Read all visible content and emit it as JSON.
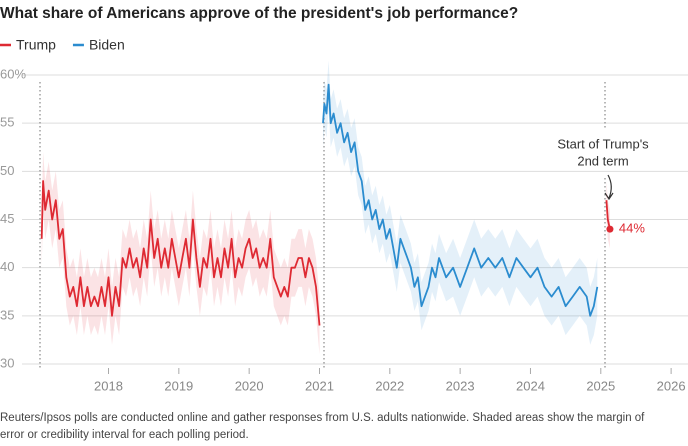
{
  "chart_data": {
    "type": "line",
    "title": "What share of Americans approve of the president's job performance?",
    "annotation": [
      "Start of Trump's",
      "2nd term"
    ],
    "note": [
      "Reuters/Ipsos polls are conducted online and gather responses from U.S. adults nationwide. Shaded areas show the margin of",
      "error or credibility interval for each polling period."
    ],
    "xlim": [
      2016.77,
      2026.24
    ],
    "xticks": [
      2018,
      2019,
      2020,
      2021,
      2022,
      2023,
      2024,
      2025,
      2026
    ],
    "ylim": [
      30,
      60
    ],
    "yticks": [
      30,
      35,
      40,
      45,
      50,
      55,
      {
        "value": 60,
        "label": "60%"
      }
    ],
    "grid": true,
    "legend": "top-left",
    "series": [
      {
        "name": "Trump",
        "color": "#de2a33",
        "x": [
          2017.05,
          2017.07,
          2017.1,
          2017.15,
          2017.2,
          2017.25,
          2017.3,
          2017.35,
          2017.4,
          2017.45,
          2017.5,
          2017.55,
          2017.6,
          2017.65,
          2017.7,
          2017.75,
          2017.8,
          2017.85,
          2017.9,
          2017.95,
          2018.0,
          2018.05,
          2018.1,
          2018.15,
          2018.2,
          2018.25,
          2018.3,
          2018.35,
          2018.4,
          2018.45,
          2018.5,
          2018.55,
          2018.6,
          2018.65,
          2018.7,
          2018.75,
          2018.8,
          2018.85,
          2018.9,
          2018.95,
          2019.0,
          2019.05,
          2019.1,
          2019.15,
          2019.2,
          2019.25,
          2019.3,
          2019.35,
          2019.4,
          2019.45,
          2019.5,
          2019.55,
          2019.6,
          2019.65,
          2019.7,
          2019.75,
          2019.8,
          2019.85,
          2019.9,
          2019.95,
          2020.0,
          2020.05,
          2020.1,
          2020.15,
          2020.2,
          2020.25,
          2020.3,
          2020.35,
          2020.4,
          2020.45,
          2020.5,
          2020.55,
          2020.6,
          2020.65,
          2020.7,
          2020.75,
          2020.8,
          2020.85,
          2020.9,
          2020.95,
          2021.0,
          2023.0,
          2025.08,
          2025.1,
          2025.13
        ],
        "values": [
          43,
          49,
          46,
          48,
          45,
          47,
          43,
          44,
          39,
          37,
          38,
          36,
          39,
          36,
          38,
          36,
          37,
          36,
          38,
          36,
          39,
          35,
          38,
          36,
          41,
          40,
          42,
          40,
          41,
          39,
          42,
          40,
          45,
          41,
          43,
          40,
          42,
          40,
          43,
          41,
          39,
          41,
          43,
          40,
          45,
          41,
          38,
          41,
          40,
          43,
          39,
          41,
          39,
          42,
          40,
          43,
          39,
          41,
          40,
          42,
          43,
          41,
          42,
          40,
          41,
          40,
          43,
          39,
          38,
          37,
          38,
          37,
          40,
          40,
          41,
          41,
          39,
          41,
          40,
          38,
          34,
          null,
          47,
          45,
          44
        ],
        "errors": [
          3,
          3,
          3,
          3,
          3,
          3,
          3,
          3,
          3,
          3,
          3,
          3,
          3,
          3,
          3,
          3,
          3,
          3,
          3,
          3,
          3,
          3,
          3,
          3,
          3,
          3,
          3,
          3,
          3,
          3,
          3,
          3,
          3,
          3,
          3,
          3,
          3,
          3,
          3,
          3,
          3,
          3,
          3,
          3,
          3,
          3,
          3,
          3,
          3,
          3,
          3,
          3,
          3,
          3,
          3,
          3,
          3,
          3,
          3,
          3,
          3,
          3,
          3,
          3,
          3,
          3,
          3,
          3,
          3,
          3,
          3,
          3,
          3,
          3,
          3,
          3,
          3,
          3,
          3,
          3,
          3,
          null,
          2,
          2,
          2
        ],
        "value_labels": [
          null,
          null,
          null,
          null,
          null,
          null,
          null,
          null,
          null,
          null,
          null,
          null,
          null,
          null,
          null,
          null,
          null,
          null,
          null,
          null,
          null,
          null,
          null,
          null,
          null,
          null,
          null,
          null,
          null,
          null,
          null,
          null,
          null,
          null,
          null,
          null,
          null,
          null,
          null,
          null,
          null,
          null,
          null,
          null,
          null,
          null,
          null,
          null,
          null,
          null,
          null,
          null,
          null,
          null,
          null,
          null,
          null,
          null,
          null,
          null,
          null,
          null,
          null,
          null,
          null,
          null,
          null,
          null,
          null,
          null,
          null,
          null,
          null,
          null,
          null,
          null,
          null,
          null,
          null,
          null,
          null,
          null,
          null,
          null,
          "44%"
        ]
      },
      {
        "name": "Biden",
        "color": "#2b8ccf",
        "x": [
          2021.05,
          2021.07,
          2021.1,
          2021.13,
          2021.16,
          2021.2,
          2021.25,
          2021.3,
          2021.35,
          2021.4,
          2021.45,
          2021.5,
          2021.55,
          2021.6,
          2021.65,
          2021.7,
          2021.75,
          2021.8,
          2021.85,
          2021.9,
          2021.95,
          2022.0,
          2022.05,
          2022.1,
          2022.15,
          2022.2,
          2022.25,
          2022.3,
          2022.35,
          2022.4,
          2022.45,
          2022.5,
          2022.55,
          2022.6,
          2022.65,
          2022.7,
          2022.75,
          2022.8,
          2022.9,
          2023.0,
          2023.1,
          2023.2,
          2023.3,
          2023.4,
          2023.5,
          2023.6,
          2023.7,
          2023.8,
          2023.9,
          2024.0,
          2024.1,
          2024.2,
          2024.3,
          2024.4,
          2024.5,
          2024.6,
          2024.7,
          2024.8,
          2024.85,
          2024.9,
          2024.95
        ],
        "values": [
          55,
          57,
          56,
          59,
          55,
          56,
          54,
          55,
          53,
          54,
          52,
          53,
          50,
          49,
          46,
          47,
          45,
          46,
          44,
          45,
          43,
          44,
          42,
          40,
          43,
          42,
          41,
          40,
          38,
          39,
          36,
          37,
          38,
          40,
          39,
          41,
          40,
          39,
          40,
          38,
          40,
          42,
          40,
          41,
          40,
          41,
          39,
          41,
          40,
          39,
          40,
          38,
          37,
          38,
          36,
          37,
          38,
          37,
          35,
          36,
          38
        ],
        "errors": [
          2.5,
          2.5,
          2.5,
          2.5,
          2.5,
          2.5,
          2.5,
          2.5,
          2.5,
          2.5,
          2.5,
          2.5,
          2.5,
          2.5,
          2.5,
          2.5,
          2.5,
          2.5,
          2.5,
          2.5,
          2.5,
          2.5,
          2.5,
          2.5,
          2.5,
          2.5,
          2.5,
          2.5,
          2.5,
          2.5,
          2.5,
          2.5,
          2.5,
          2.5,
          2.5,
          2.5,
          2.5,
          2.5,
          3,
          3,
          3,
          3,
          3,
          3,
          3,
          3,
          3,
          3,
          3,
          3,
          3,
          3,
          3,
          3,
          3,
          3,
          3,
          3,
          3,
          3,
          3
        ]
      }
    ]
  }
}
